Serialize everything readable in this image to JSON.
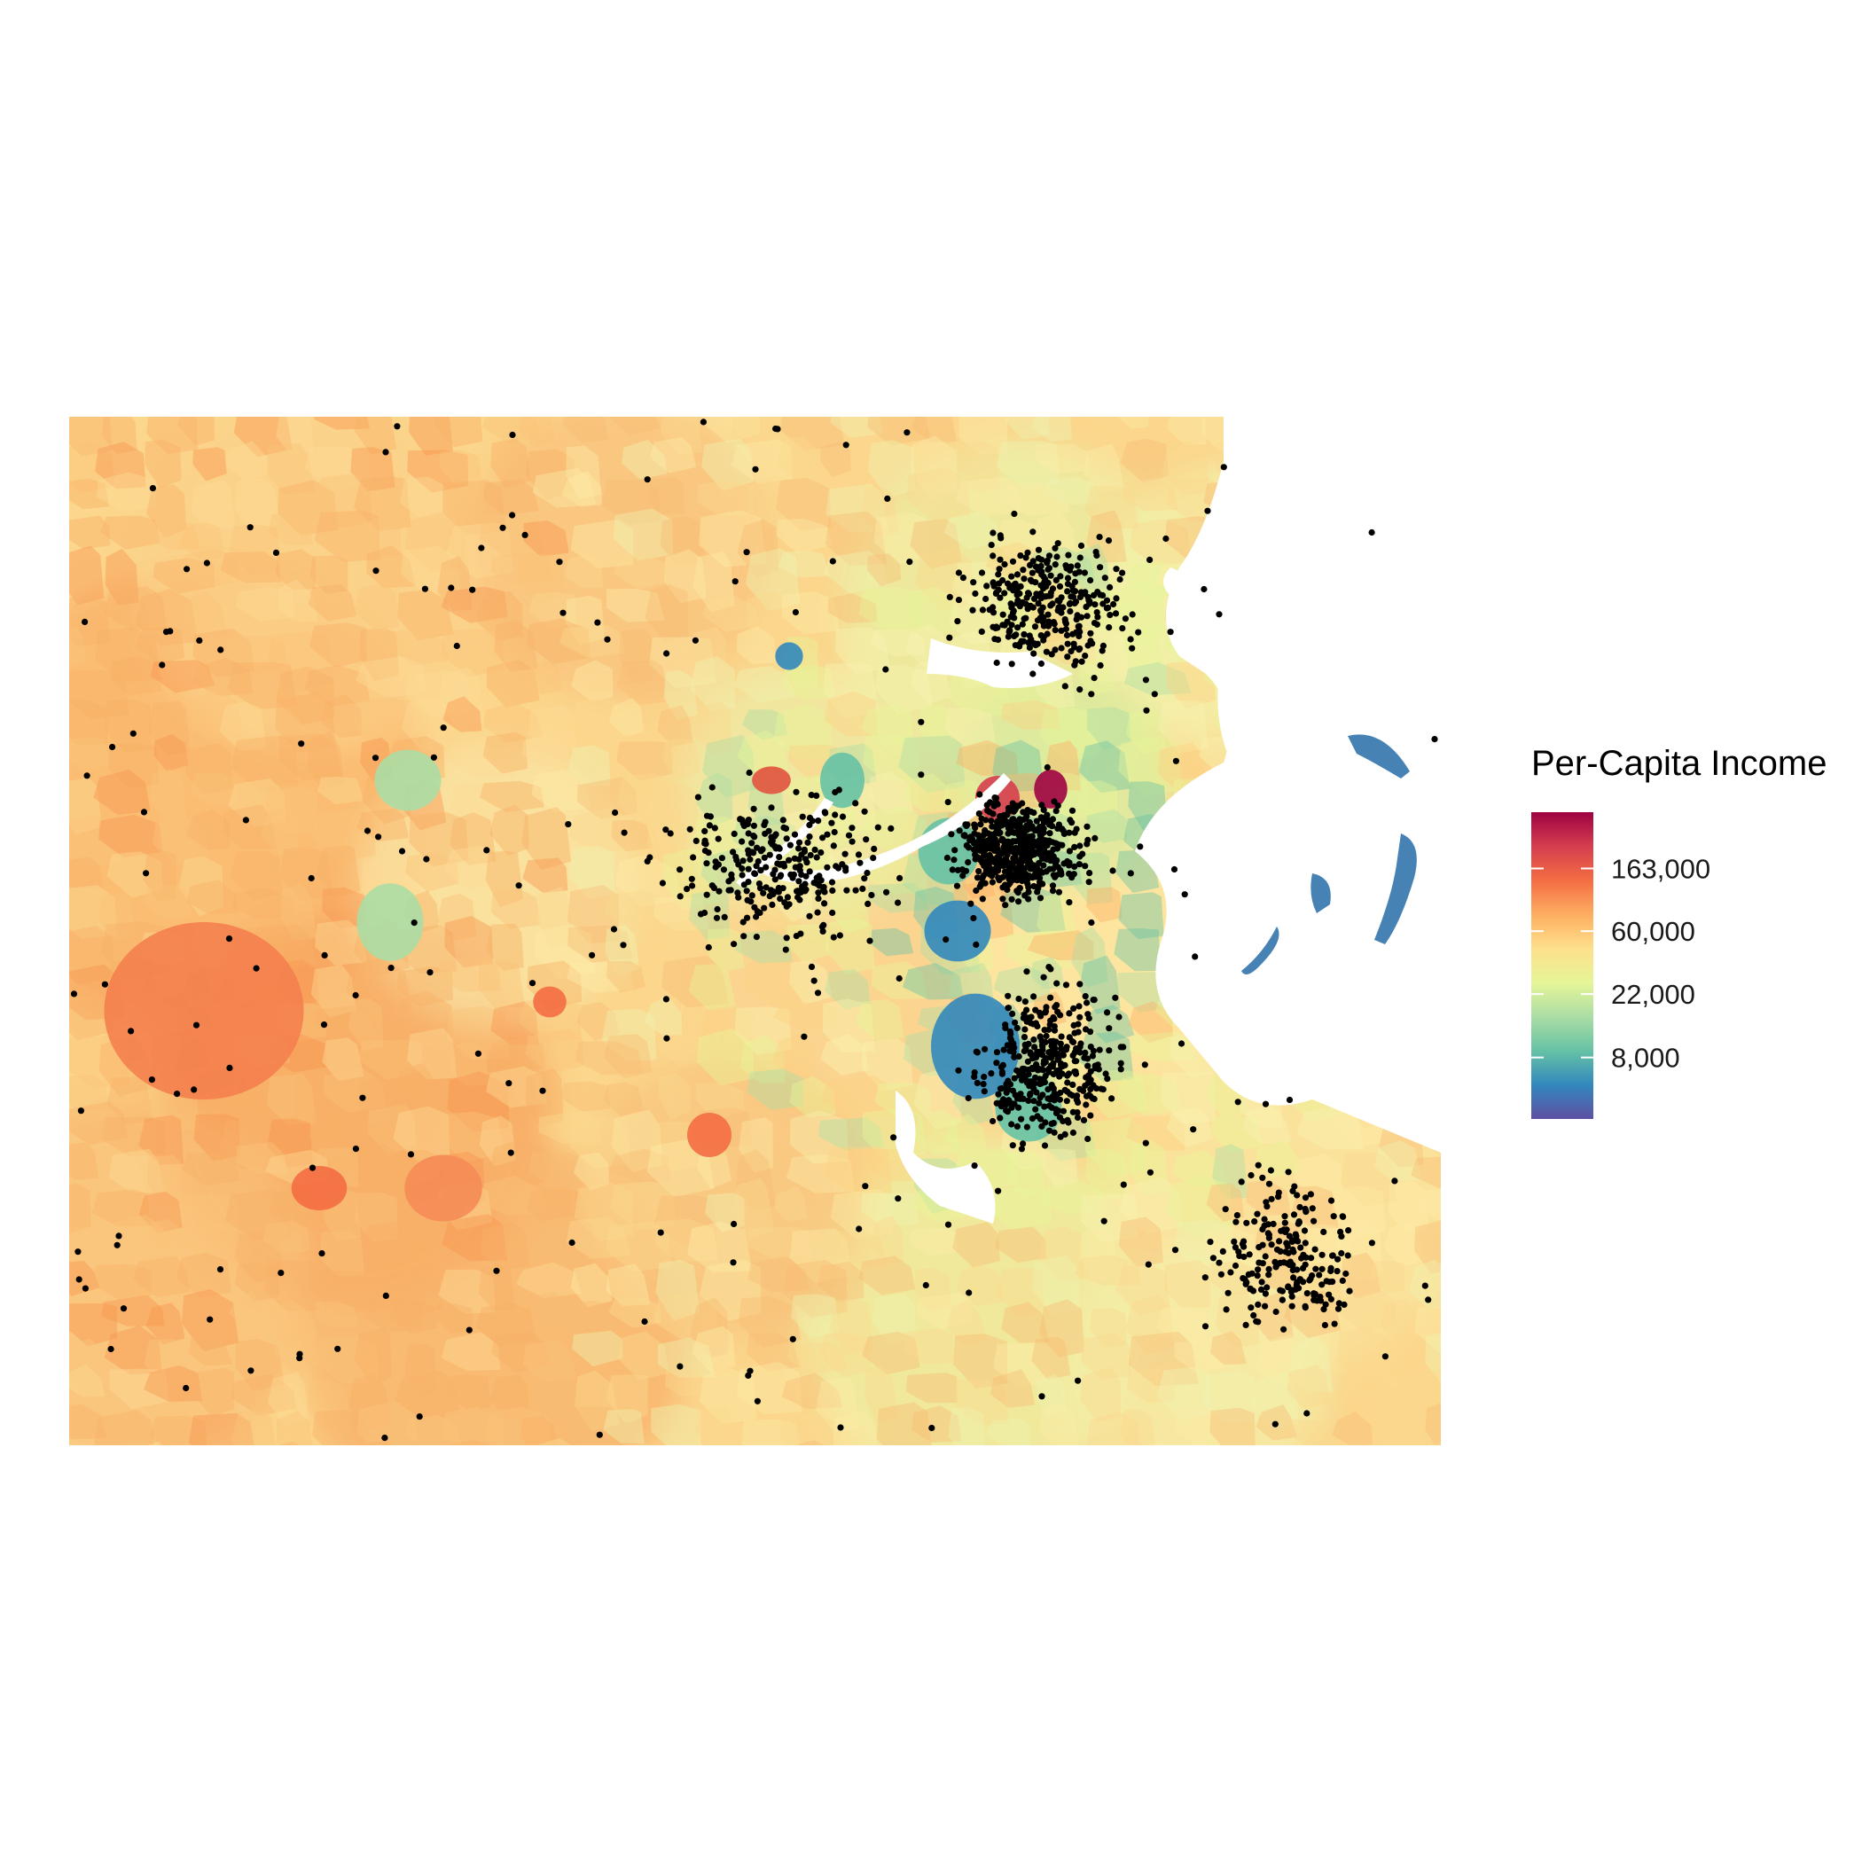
{
  "chart_data": {
    "type": "choropleth-map",
    "legend": {
      "title": "Per-Capita Income",
      "placement": "right",
      "scale": "log",
      "palette": [
        "#5e4fa2",
        "#3288bd",
        "#66c2a5",
        "#abdda4",
        "#e6f598",
        "#fee08b",
        "#fdae61",
        "#f46d43",
        "#d53e4f",
        "#9e0142"
      ],
      "ticks": [
        {
          "value": 163000,
          "label": "163,000"
        },
        {
          "value": 60000,
          "label": "60,000"
        },
        {
          "value": 22000,
          "label": "22,000"
        },
        {
          "value": 8000,
          "label": "8,000"
        }
      ],
      "range": [
        3000,
        400000
      ]
    },
    "overlay": {
      "type": "points",
      "color": "#000000",
      "description_level": "dense cluster near center and harbor"
    },
    "water_color": "#ffffff",
    "island_color": "#4682b4"
  }
}
